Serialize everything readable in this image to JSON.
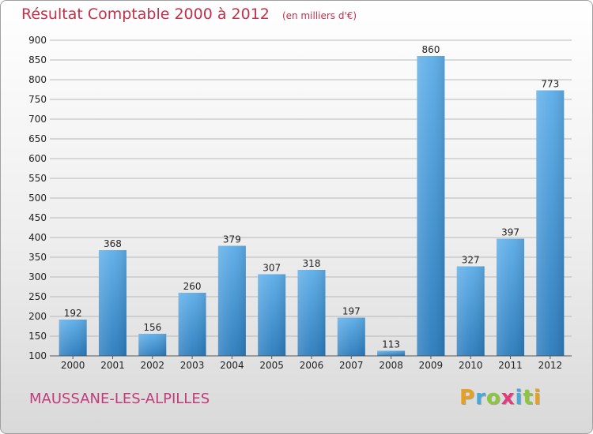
{
  "header": {
    "title": "Résultat Comptable 2000 à 2012",
    "unit": "(en milliers d'€)"
  },
  "footer": {
    "town": "MAUSSANE-LES-ALPILLES",
    "brand": "Proxiti",
    "brand_letters": [
      {
        "char": "P",
        "color": "#e8a020"
      },
      {
        "char": "r",
        "color": "#4aa8d8"
      },
      {
        "char": "o",
        "color": "#8cc63f"
      },
      {
        "char": "x",
        "color": "#e23a7a"
      },
      {
        "char": "i",
        "color": "#4aa8d8"
      },
      {
        "char": "t",
        "color": "#8cc63f"
      },
      {
        "char": "i",
        "color": "#e8a020"
      }
    ]
  },
  "colors": {
    "bar_top": "#5dade8",
    "bar_bottom": "#2a7bbd",
    "grid": "#b8b8b8",
    "axis_text": "#222222",
    "title": "#c2304a",
    "town": "#c23b7a"
  },
  "chart_data": {
    "type": "bar",
    "title": "Résultat Comptable 2000 à 2012",
    "subtitle": "(en milliers d'€)",
    "xlabel": "",
    "ylabel": "",
    "categories": [
      "2000",
      "2001",
      "2002",
      "2003",
      "2004",
      "2005",
      "2006",
      "2007",
      "2008",
      "2009",
      "2010",
      "2011",
      "2012"
    ],
    "values": [
      192,
      368,
      156,
      260,
      379,
      307,
      318,
      197,
      113,
      860,
      327,
      397,
      773
    ],
    "ylim": [
      100,
      900
    ],
    "yticks": [
      100,
      150,
      200,
      250,
      300,
      350,
      400,
      450,
      500,
      550,
      600,
      650,
      700,
      750,
      800,
      850,
      900
    ],
    "grid": true,
    "legend": "none"
  }
}
